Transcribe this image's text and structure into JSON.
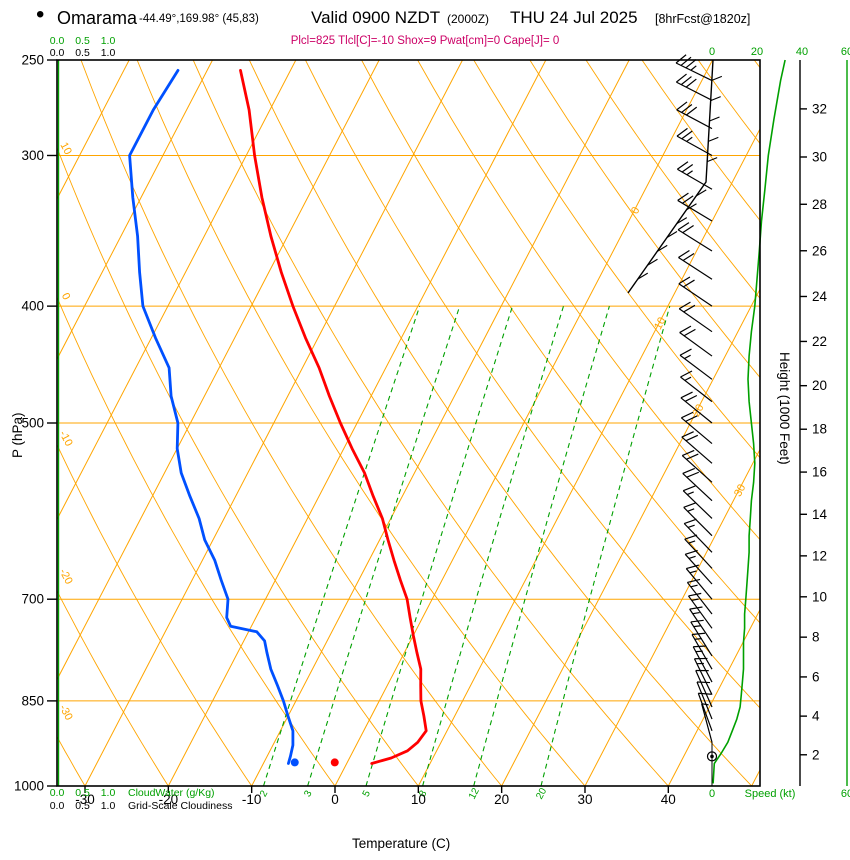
{
  "header": {
    "bullet": "•",
    "station": "Omarama",
    "coordinates": "-44.49°,169.98° (45,83)",
    "valid_time": "Valid 0900 NZDT",
    "valid_utc": "(2000Z)",
    "valid_date": "THU 24 Jul 2025",
    "forecast_tag": "[8hrFcst@1820z]",
    "indices": "Plcl=825 Tlcl[C]=-10 Shox=9 Pwat[cm]=0 Cape[J]= 0"
  },
  "axes": {
    "pressure_label": "P (hPa)",
    "temperature_label": "Temperature (C)",
    "height_label": "Height (1000 Feet)",
    "speed_label": "Speed (kt)",
    "cloudwater_label": "CloudWater (g/Kg)",
    "cloudiness_label": "Grid-Scale Cloudiness"
  },
  "chart_data": {
    "type": "skewt-log-p-sounding",
    "pressure_ticks_hpa": [
      250,
      300,
      400,
      500,
      700,
      850,
      1000
    ],
    "temperature_ticks_c": [
      -30,
      -20,
      -10,
      0,
      10,
      20,
      30,
      40
    ],
    "height_ticks_kft": [
      2,
      4,
      6,
      8,
      10,
      12,
      14,
      16,
      18,
      20,
      22,
      24,
      26,
      28,
      30,
      32
    ],
    "speed_ticks_kt": [
      0,
      20,
      40,
      60
    ],
    "cloud_scale_ticks": [
      "0.0",
      "0.5",
      "1.0"
    ],
    "isotherm_labels_c": [
      0,
      10,
      20,
      30
    ],
    "dry_adiabat_labels_c": [
      10,
      0,
      -10,
      -20,
      -30
    ],
    "mixing_ratio_g_kg": [
      2,
      3,
      5,
      8,
      12,
      20
    ],
    "temperature_profile_p_t": [
      [
        958,
        3.0
      ],
      [
        948,
        5.0
      ],
      [
        935,
        6.5
      ],
      [
        920,
        7.2
      ],
      [
        900,
        7.5
      ],
      [
        875,
        6.3
      ],
      [
        850,
        5.0
      ],
      [
        825,
        4.0
      ],
      [
        800,
        3.0
      ],
      [
        775,
        1.5
      ],
      [
        750,
        0.0
      ],
      [
        725,
        -1.5
      ],
      [
        700,
        -3.0
      ],
      [
        675,
        -5.0
      ],
      [
        650,
        -7.0
      ],
      [
        625,
        -9.0
      ],
      [
        600,
        -11.0
      ],
      [
        575,
        -13.5
      ],
      [
        550,
        -16.0
      ],
      [
        525,
        -19.0
      ],
      [
        500,
        -22.0
      ],
      [
        475,
        -25.0
      ],
      [
        450,
        -28.0
      ],
      [
        425,
        -31.5
      ],
      [
        400,
        -35.0
      ],
      [
        375,
        -38.5
      ],
      [
        350,
        -42.0
      ],
      [
        325,
        -45.5
      ],
      [
        300,
        -49.0
      ],
      [
        275,
        -52.5
      ],
      [
        255,
        -56.0
      ]
    ],
    "dewpoint_profile_p_t": [
      [
        958,
        -7.0
      ],
      [
        945,
        -7.2
      ],
      [
        925,
        -7.6
      ],
      [
        900,
        -8.5
      ],
      [
        875,
        -10.0
      ],
      [
        850,
        -11.5
      ],
      [
        825,
        -13.2
      ],
      [
        800,
        -15.0
      ],
      [
        775,
        -16.5
      ],
      [
        758,
        -17.5
      ],
      [
        745,
        -19.0
      ],
      [
        737,
        -22.5
      ],
      [
        725,
        -23.5
      ],
      [
        700,
        -24.5
      ],
      [
        675,
        -26.5
      ],
      [
        650,
        -28.5
      ],
      [
        625,
        -31.0
      ],
      [
        600,
        -33.0
      ],
      [
        575,
        -35.5
      ],
      [
        550,
        -38.0
      ],
      [
        525,
        -40.0
      ],
      [
        500,
        -41.5
      ],
      [
        475,
        -44.0
      ],
      [
        450,
        -46.0
      ],
      [
        425,
        -49.5
      ],
      [
        400,
        -53.0
      ],
      [
        375,
        -55.5
      ],
      [
        350,
        -58.0
      ],
      [
        325,
        -61.0
      ],
      [
        300,
        -64.0
      ],
      [
        275,
        -64.0
      ],
      [
        255,
        -63.5
      ]
    ],
    "surface_markers": {
      "pressure_hpa": 956,
      "temperature_c": -1.5,
      "dewpoint_c": -6.3
    },
    "wind_speed_profile_p_kt": [
      [
        995,
        0.5
      ],
      [
        958,
        1
      ],
      [
        940,
        4
      ],
      [
        920,
        7
      ],
      [
        900,
        9
      ],
      [
        880,
        11
      ],
      [
        860,
        12.5
      ],
      [
        840,
        13
      ],
      [
        820,
        13.5
      ],
      [
        800,
        14
      ],
      [
        780,
        14
      ],
      [
        760,
        14
      ],
      [
        740,
        14.5
      ],
      [
        720,
        14.5
      ],
      [
        700,
        15
      ],
      [
        680,
        15.5
      ],
      [
        660,
        16
      ],
      [
        640,
        16.5
      ],
      [
        620,
        16.5
      ],
      [
        600,
        17
      ],
      [
        580,
        17.5
      ],
      [
        560,
        18.5
      ],
      [
        540,
        19
      ],
      [
        520,
        18.5
      ],
      [
        500,
        17.5
      ],
      [
        480,
        16.5
      ],
      [
        460,
        16
      ],
      [
        440,
        16.5
      ],
      [
        420,
        17.5
      ],
      [
        400,
        19
      ],
      [
        380,
        20
      ],
      [
        360,
        21
      ],
      [
        340,
        22
      ],
      [
        320,
        23.5
      ],
      [
        300,
        25
      ],
      [
        280,
        27.5
      ],
      [
        260,
        30.5
      ],
      [
        250,
        32.5
      ]
    ],
    "wind_barbs_p_kt_dir": [
      [
        945,
        0,
        0
      ],
      [
        920,
        6,
        345
      ],
      [
        900,
        9,
        340
      ],
      [
        880,
        10,
        338
      ],
      [
        860,
        12,
        336
      ],
      [
        840,
        13,
        334
      ],
      [
        820,
        13,
        332
      ],
      [
        800,
        14,
        330
      ],
      [
        780,
        14,
        328
      ],
      [
        760,
        14,
        326
      ],
      [
        740,
        15,
        324
      ],
      [
        720,
        15,
        322
      ],
      [
        700,
        15,
        320
      ],
      [
        680,
        15,
        318
      ],
      [
        660,
        16,
        317
      ],
      [
        640,
        16,
        316
      ],
      [
        620,
        17,
        315
      ],
      [
        600,
        17,
        314
      ],
      [
        580,
        18,
        313
      ],
      [
        560,
        18,
        312
      ],
      [
        540,
        19,
        311
      ],
      [
        520,
        18,
        310
      ],
      [
        500,
        18,
        309
      ],
      [
        480,
        17,
        308
      ],
      [
        460,
        17,
        307
      ],
      [
        440,
        18,
        306
      ],
      [
        420,
        18,
        305
      ],
      [
        400,
        20,
        304
      ],
      [
        380,
        20,
        303
      ],
      [
        360,
        21,
        302
      ],
      [
        340,
        22,
        301
      ],
      [
        320,
        24,
        300
      ],
      [
        300,
        26,
        299
      ],
      [
        285,
        28,
        298
      ],
      [
        270,
        30,
        297
      ],
      [
        260,
        33,
        296
      ]
    ],
    "colors": {
      "grid_orange": "#ffa500",
      "temperature_red": "#ff0000",
      "dewpoint_blue": "#0050ff",
      "green": "#00a000",
      "indices_magenta": "#cc0066",
      "axis_black": "#000000"
    }
  }
}
